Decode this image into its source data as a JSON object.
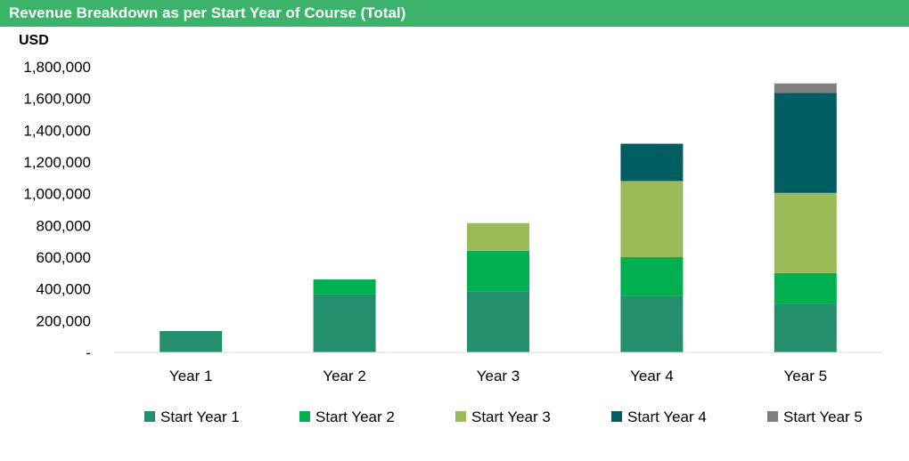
{
  "chart_data": {
    "type": "bar",
    "stacked": true,
    "title": "Revenue Breakdown as per Start Year of Course (Total)",
    "ylabel": "USD",
    "xlabel": "",
    "categories": [
      "Year 1",
      "Year 2",
      "Year 3",
      "Year 4",
      "Year 5"
    ],
    "ylim": [
      0,
      1800000
    ],
    "yticks": [
      0,
      200000,
      400000,
      600000,
      800000,
      1000000,
      1200000,
      1400000,
      1600000,
      1800000
    ],
    "ytick_labels": [
      "-",
      "200,000",
      "400,000",
      "600,000",
      "800,000",
      "1,000,000",
      "1,200,000",
      "1,400,000",
      "1,600,000",
      "1,800,000"
    ],
    "grid": false,
    "legend_position": "bottom",
    "series": [
      {
        "name": "Start Year 1",
        "color": "#248f6e",
        "values": [
          135000,
          365000,
          385000,
          355000,
          305000
        ]
      },
      {
        "name": "Start Year 2",
        "color": "#00b050",
        "values": [
          0,
          95000,
          255000,
          245000,
          195000
        ]
      },
      {
        "name": "Start Year 3",
        "color": "#9bbb59",
        "values": [
          0,
          0,
          175000,
          480000,
          505000
        ]
      },
      {
        "name": "Start Year 4",
        "color": "#005e63",
        "values": [
          0,
          0,
          0,
          235000,
          630000
        ]
      },
      {
        "name": "Start Year 5",
        "color": "#7f7f7f",
        "values": [
          0,
          0,
          0,
          0,
          60000
        ]
      }
    ]
  }
}
